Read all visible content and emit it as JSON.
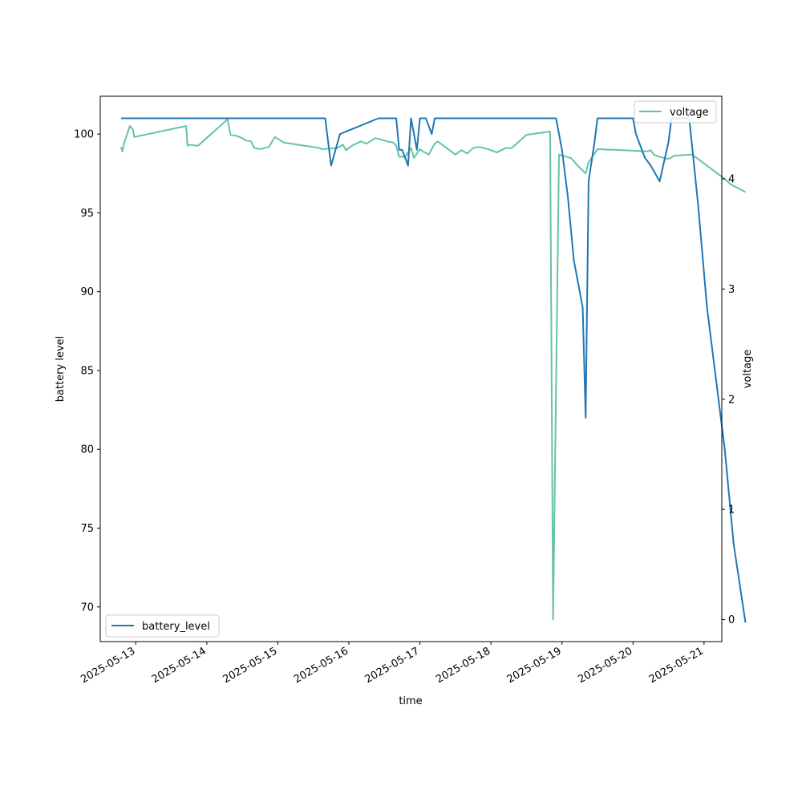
{
  "chart_data": {
    "type": "line",
    "xlabel": "time",
    "ylabel_left": "battery level",
    "ylabel_right": "voltage",
    "x_ticks": [
      "2025-05-13",
      "2025-05-14",
      "2025-05-15",
      "2025-05-16",
      "2025-05-17",
      "2025-05-18",
      "2025-05-19",
      "2025-05-20",
      "2025-05-21"
    ],
    "x_range": [
      "2025-05-12 12:00",
      "2025-05-21 06:00"
    ],
    "left_ylim": [
      67.8,
      102.4
    ],
    "left_ticks": [
      70,
      75,
      80,
      85,
      90,
      95,
      100
    ],
    "right_ylim": [
      -0.2,
      4.75
    ],
    "right_ticks": [
      0,
      1,
      2,
      3,
      4
    ],
    "legends": {
      "battery": {
        "label": "battery_level",
        "position": "lower-left"
      },
      "voltage": {
        "label": "voltage",
        "position": "upper-right"
      }
    },
    "colors": {
      "battery": "#1f77b4",
      "voltage": "#66c2a5"
    },
    "series": [
      {
        "name": "battery_level",
        "axis": "left",
        "points": [
          [
            "2025-05-12 19:00",
            101
          ],
          [
            "2025-05-15 16:00",
            101
          ],
          [
            "2025-05-15 18:00",
            98
          ],
          [
            "2025-05-15 21:00",
            100
          ],
          [
            "2025-05-16 10:00",
            101
          ],
          [
            "2025-05-16 16:00",
            101
          ],
          [
            "2025-05-16 17:00",
            99
          ],
          [
            "2025-05-16 18:00",
            99
          ],
          [
            "2025-05-16 20:00",
            98
          ],
          [
            "2025-05-16 21:00",
            101
          ],
          [
            "2025-05-16 23:00",
            99
          ],
          [
            "2025-05-17 00:00",
            101
          ],
          [
            "2025-05-17 02:00",
            101
          ],
          [
            "2025-05-17 04:00",
            100
          ],
          [
            "2025-05-17 05:00",
            101
          ],
          [
            "2025-05-18 22:00",
            101
          ],
          [
            "2025-05-19 00:00",
            99
          ],
          [
            "2025-05-19 02:00",
            96
          ],
          [
            "2025-05-19 04:00",
            92
          ],
          [
            "2025-05-19 07:00",
            89
          ],
          [
            "2025-05-19 08:00",
            82
          ],
          [
            "2025-05-19 09:00",
            97
          ],
          [
            "2025-05-19 11:00",
            99.5
          ],
          [
            "2025-05-19 12:00",
            101
          ],
          [
            "2025-05-20 00:00",
            101
          ],
          [
            "2025-05-20 01:00",
            100
          ],
          [
            "2025-05-20 04:00",
            98.5
          ],
          [
            "2025-05-20 06:00",
            98
          ],
          [
            "2025-05-20 09:00",
            97
          ],
          [
            "2025-05-20 12:00",
            99.5
          ],
          [
            "2025-05-20 13:00",
            101
          ],
          [
            "2025-05-20 19:00",
            101
          ],
          [
            "2025-05-20 22:00",
            95.5
          ],
          [
            "2025-05-21 01:00",
            89
          ],
          [
            "2025-05-21 07:00",
            80
          ],
          [
            "2025-05-21 10:00",
            74
          ],
          [
            "2025-05-21 14:00",
            69
          ]
        ]
      },
      {
        "name": "voltage",
        "axis": "right",
        "points": [
          [
            "2025-05-12 19:00",
            4.29
          ],
          [
            "2025-05-12 19:30",
            4.25
          ],
          [
            "2025-05-12 20:00",
            4.32
          ],
          [
            "2025-05-12 22:00",
            4.48
          ],
          [
            "2025-05-12 23:00",
            4.45
          ],
          [
            "2025-05-12 23:30",
            4.38
          ],
          [
            "2025-05-13 17:00",
            4.48
          ],
          [
            "2025-05-13 17:30",
            4.3
          ],
          [
            "2025-05-13 18:00",
            4.31
          ],
          [
            "2025-05-13 21:00",
            4.3
          ],
          [
            "2025-05-14 07:00",
            4.54
          ],
          [
            "2025-05-14 08:00",
            4.4
          ],
          [
            "2025-05-14 10:00",
            4.39
          ],
          [
            "2025-05-14 12:00",
            4.37
          ],
          [
            "2025-05-14 13:00",
            4.35
          ],
          [
            "2025-05-14 15:00",
            4.34
          ],
          [
            "2025-05-14 16:00",
            4.28
          ],
          [
            "2025-05-14 18:00",
            4.27
          ],
          [
            "2025-05-14 21:00",
            4.29
          ],
          [
            "2025-05-14 23:00",
            4.38
          ],
          [
            "2025-05-15 02:00",
            4.33
          ],
          [
            "2025-05-15 14:00",
            4.28
          ],
          [
            "2025-05-15 15:00",
            4.27
          ],
          [
            "2025-05-15 20:00",
            4.28
          ],
          [
            "2025-05-15 22:00",
            4.31
          ],
          [
            "2025-05-15 23:00",
            4.26
          ],
          [
            "2025-05-16 01:00",
            4.3
          ],
          [
            "2025-05-16 04:00",
            4.34
          ],
          [
            "2025-05-16 06:00",
            4.32
          ],
          [
            "2025-05-16 09:00",
            4.37
          ],
          [
            "2025-05-16 13:00",
            4.34
          ],
          [
            "2025-05-16 15:00",
            4.33
          ],
          [
            "2025-05-16 16:00",
            4.3
          ],
          [
            "2025-05-16 17:00",
            4.2
          ],
          [
            "2025-05-16 19:00",
            4.2
          ],
          [
            "2025-05-16 21:00",
            4.28
          ],
          [
            "2025-05-16 22:00",
            4.19
          ],
          [
            "2025-05-17 00:00",
            4.27
          ],
          [
            "2025-05-17 01:00",
            4.25
          ],
          [
            "2025-05-17 03:00",
            4.22
          ],
          [
            "2025-05-17 05:00",
            4.32
          ],
          [
            "2025-05-17 06:00",
            4.34
          ],
          [
            "2025-05-17 08:00",
            4.3
          ],
          [
            "2025-05-17 10:00",
            4.26
          ],
          [
            "2025-05-17 12:00",
            4.22
          ],
          [
            "2025-05-17 14:00",
            4.26
          ],
          [
            "2025-05-17 16:00",
            4.23
          ],
          [
            "2025-05-17 18:00",
            4.28
          ],
          [
            "2025-05-17 20:00",
            4.29
          ],
          [
            "2025-05-17 23:00",
            4.27
          ],
          [
            "2025-05-18 02:00",
            4.24
          ],
          [
            "2025-05-18 05:00",
            4.28
          ],
          [
            "2025-05-18 07:00",
            4.28
          ],
          [
            "2025-05-18 12:00",
            4.4
          ],
          [
            "2025-05-18 20:00",
            4.43
          ],
          [
            "2025-05-18 21:00",
            0.0
          ],
          [
            "2025-05-18 23:00",
            4.22
          ],
          [
            "2025-05-19 03:00",
            4.19
          ],
          [
            "2025-05-19 06:00",
            4.1
          ],
          [
            "2025-05-19 08:00",
            4.05
          ],
          [
            "2025-05-19 09:00",
            4.15
          ],
          [
            "2025-05-19 12:00",
            4.27
          ],
          [
            "2025-05-20 05:00",
            4.25
          ],
          [
            "2025-05-20 06:00",
            4.26
          ],
          [
            "2025-05-20 07:00",
            4.22
          ],
          [
            "2025-05-20 09:00",
            4.2
          ],
          [
            "2025-05-20 12:00",
            4.18
          ],
          [
            "2025-05-20 14:00",
            4.21
          ],
          [
            "2025-05-20 20:00",
            4.22
          ],
          [
            "2025-05-21 00:00",
            4.14
          ],
          [
            "2025-05-21 07:00",
            4.0
          ],
          [
            "2025-05-21 09:00",
            3.95
          ],
          [
            "2025-05-21 14:00",
            3.88
          ]
        ]
      }
    ]
  }
}
